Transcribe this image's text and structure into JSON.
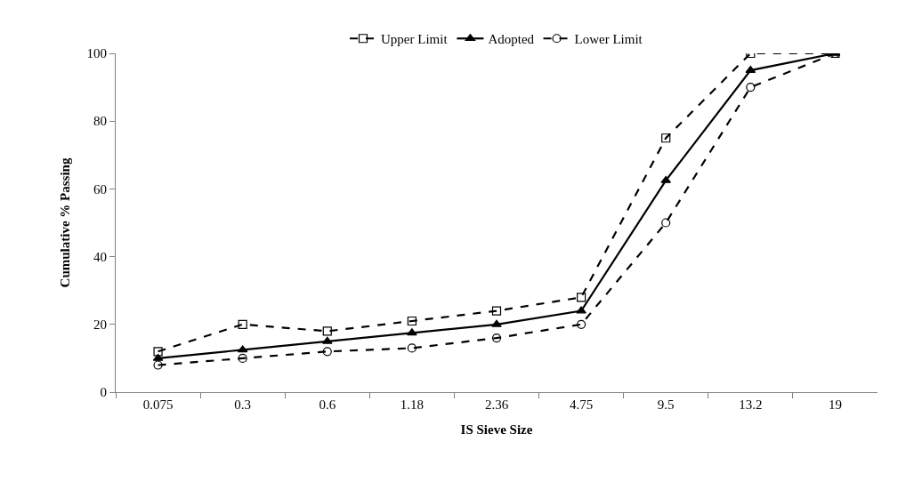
{
  "chart_data": {
    "type": "line",
    "xlabel": "IS Sieve Size",
    "ylabel": "Cumulative % Passing",
    "categories": [
      "0.075",
      "0.3",
      "0.6",
      "1.18",
      "2.36",
      "4.75",
      "9.5",
      "13.2",
      "19"
    ],
    "series": [
      {
        "name": "Upper Limit",
        "color": "#000000",
        "marker": "square",
        "line_style": "dashed",
        "values": [
          12,
          20,
          18,
          21,
          24,
          28,
          75,
          100,
          100
        ]
      },
      {
        "name": "Adopted",
        "color": "#000000",
        "marker": "triangle",
        "line_style": "solid",
        "values": [
          10,
          12.5,
          15,
          17.5,
          20,
          24,
          62.5,
          95,
          100
        ]
      },
      {
        "name": "Lower Limit",
        "color": "#000000",
        "marker": "circle",
        "line_style": "dashed",
        "values": [
          8,
          10,
          12,
          13,
          16,
          20,
          50,
          90,
          100
        ]
      }
    ],
    "ylim": [
      0,
      100
    ],
    "yticks": [
      0,
      20,
      40,
      60,
      80,
      100
    ],
    "legend": "top"
  }
}
